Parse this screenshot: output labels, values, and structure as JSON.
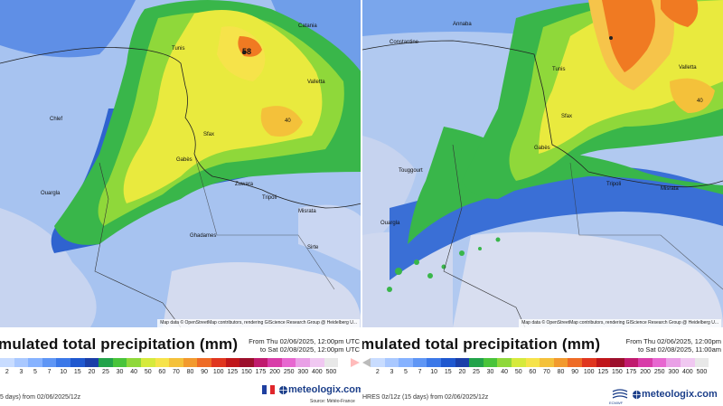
{
  "left": {
    "title": "mulated total precipitation (mm)",
    "period_from": "From Thu 02/06/2025, 12:00pm UTC",
    "period_to": "to Sat 02/08/2025, 12:00pm UTC",
    "model": "5 days) from 02/06/2025/12z",
    "logo": "meteologix.com",
    "source": "Source: Météo-France",
    "attribution": "Map data © OpenStreetMap contributors, rendering GIScience Research Group @ Heidelberg U...",
    "max_label": "58",
    "label_40": "40",
    "places": [
      "Tunis",
      "Catania",
      "Valletta",
      "Chlef",
      "Sfax",
      "Gabès",
      "Zuwara",
      "Tripoli",
      "Misrata",
      "Sirte",
      "Ouargla",
      "Ghadames"
    ]
  },
  "right": {
    "title": "mulated total precipitation (mm)",
    "period_from": "From Thu 02/06/2025, 12:00pm",
    "period_to": "to Sat 02/08/2025, 11:00am",
    "model": "HRES 0z/12z (15 days) from 02/06/2025/12z",
    "logo": "meteologix.com",
    "ecmwf": "ECMWF",
    "attribution": "Map data © OpenStreetMap contributors, rendering GIScience Research Group @ Heidelberg U...",
    "label_40": "40",
    "places": [
      "Constantine",
      "Annaba",
      "Valletta",
      "Tunis",
      "Sfax",
      "Gabès",
      "Tripoli",
      "Misrata",
      "Ouargla",
      "Touggourt"
    ]
  },
  "scale": {
    "ticks": [
      "2",
      "3",
      "5",
      "7",
      "10",
      "15",
      "20",
      "25",
      "30",
      "40",
      "50",
      "60",
      "70",
      "80",
      "90",
      "100",
      "125",
      "150",
      "175",
      "200",
      "250",
      "300",
      "400",
      "500"
    ],
    "colors": [
      "#c8dcff",
      "#a9c8ff",
      "#86b2ff",
      "#5f96f5",
      "#3b78e8",
      "#1f58cf",
      "#1a3fa8",
      "#22a34a",
      "#49c43a",
      "#8fd83a",
      "#d6ea3c",
      "#f6e34a",
      "#f4c13a",
      "#f29a2e",
      "#ee6b25",
      "#e0361f",
      "#c0161a",
      "#9c0f2c",
      "#c01a6e",
      "#d83ca8",
      "#e767d0",
      "#e9a0e6",
      "#f0c8f1",
      "#e8e8e8"
    ]
  },
  "colors": {
    "sea_base": "#6a9ee8",
    "land_base": "#dde3f0",
    "green": "#39b64a",
    "yellow": "#e9ea3e",
    "orange": "#f07a22",
    "brand": "#1c3f8a"
  }
}
